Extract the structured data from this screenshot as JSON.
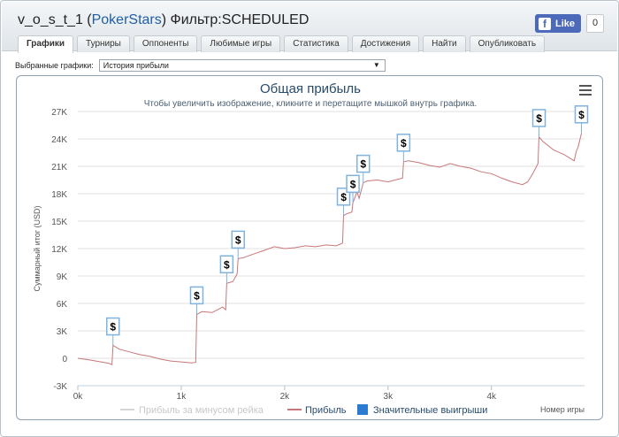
{
  "header": {
    "title_prefix": "v_o_s_t_1 (",
    "site": "PokerStars",
    "title_suffix": ") Фильтр:SCHEDULED",
    "fb_like_label": "Like",
    "fb_like_count": "0"
  },
  "tabs": [
    "Графики",
    "Турниры",
    "Оппоненты",
    "Любимые игры",
    "Статистика",
    "Достижения",
    "Найти",
    "Опубликовать"
  ],
  "active_tab": "Графики",
  "selector": {
    "label": "Выбранные графики:",
    "value": "История прибыли"
  },
  "chart_data": {
    "type": "line",
    "title": "Общая прибыль",
    "subtitle": "Чтобы увеличить изображение, кликните и перетащите мышкой внутрь графика.",
    "xlabel": "Номер игры",
    "ylabel": "Суммарный итог (USD)",
    "x_ticks": [
      "0k",
      "1k",
      "2k",
      "3k",
      "4k"
    ],
    "y_ticks": [
      "-3K",
      "0",
      "3K",
      "6K",
      "9K",
      "12K",
      "15K",
      "18K",
      "21K",
      "24K",
      "27K"
    ],
    "xlim": [
      0,
      4900
    ],
    "ylim": [
      -3000,
      27000
    ],
    "grid": true,
    "legend": [
      "Прибыль за минусом рейка",
      "Прибыль",
      "Значительные выигрыши"
    ],
    "legend_placement": "bottom",
    "colors": {
      "net": "#d6d6d6",
      "profit": "#c8767a",
      "wins": "#2b7bd0",
      "flag_border": "#7fb3de"
    },
    "series": [
      {
        "name": "Прибыль",
        "x": [
          0,
          100,
          200,
          300,
          330,
          340,
          400,
          500,
          600,
          700,
          800,
          900,
          1000,
          1100,
          1140,
          1150,
          1200,
          1300,
          1400,
          1430,
          1440,
          1500,
          1540,
          1550,
          1600,
          1700,
          1800,
          1900,
          2000,
          2100,
          2200,
          2300,
          2400,
          2500,
          2560,
          2570,
          2600,
          2650,
          2660,
          2700,
          2720,
          2760,
          2800,
          2900,
          3000,
          3100,
          3140,
          3150,
          3200,
          3300,
          3400,
          3500,
          3600,
          3700,
          3800,
          3900,
          4000,
          4100,
          4200,
          4300,
          4350,
          4400,
          4450,
          4460,
          4500,
          4600,
          4700,
          4800,
          4820,
          4840,
          4870
        ],
        "values": [
          0,
          -150,
          -350,
          -550,
          -700,
          1400,
          1000,
          700,
          400,
          200,
          -100,
          -300,
          -400,
          -500,
          -450,
          4800,
          5100,
          5000,
          5600,
          5300,
          8200,
          8400,
          9200,
          10900,
          11000,
          11400,
          11800,
          12200,
          12000,
          12100,
          12300,
          12200,
          12400,
          12300,
          12600,
          15600,
          15800,
          16000,
          17000,
          18200,
          17500,
          19200,
          19400,
          19500,
          19300,
          19600,
          19700,
          21500,
          21600,
          21400,
          21100,
          20900,
          21300,
          21000,
          20800,
          20400,
          20200,
          19700,
          19300,
          19000,
          19300,
          20200,
          21300,
          24200,
          23700,
          22800,
          22300,
          21600,
          22600,
          23200,
          24600
        ]
      }
    ],
    "big_wins_x": [
      340,
      1150,
      1440,
      1550,
      2570,
      2660,
      2760,
      3150,
      4460,
      4870
    ]
  }
}
